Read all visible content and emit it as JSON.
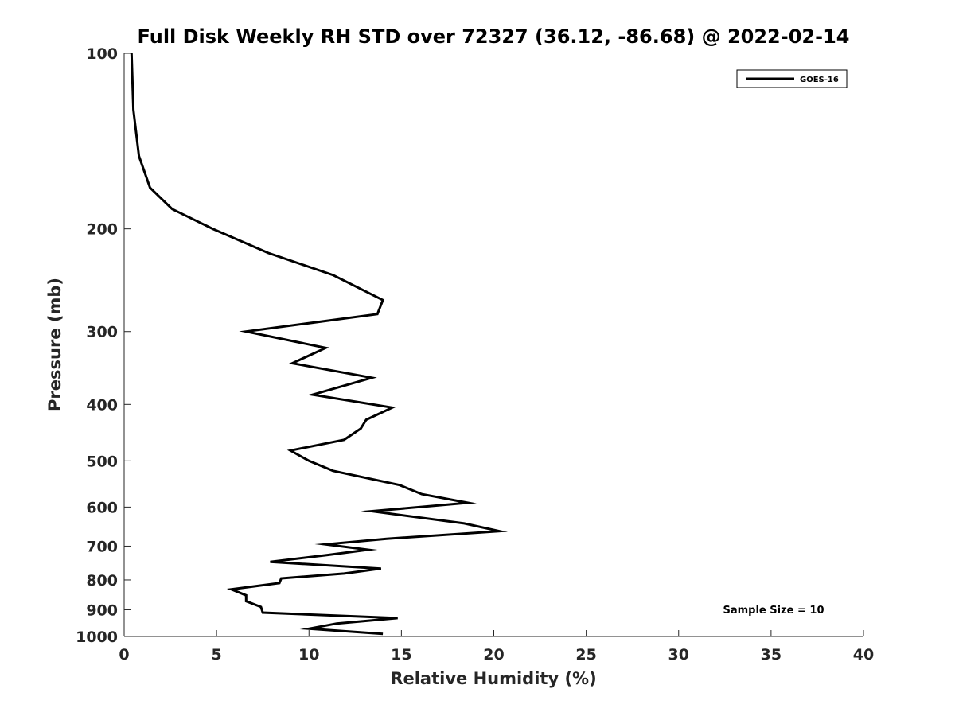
{
  "chart_data": {
    "type": "line",
    "title": "Full Disk Weekly RH STD over 72327 (36.12, -86.68) @ 2022-02-14",
    "xlabel": "Relative Humidity (%)",
    "ylabel": "Pressure (mb)",
    "xlim": [
      0,
      40
    ],
    "ylim": [
      100,
      1000
    ],
    "yscale": "log",
    "y_reversed": true,
    "x_ticks": [
      0,
      5,
      10,
      15,
      20,
      25,
      30,
      35,
      40
    ],
    "y_ticks": [
      100,
      200,
      300,
      400,
      500,
      600,
      700,
      800,
      900,
      1000
    ],
    "legend_position": "top-right",
    "annotation": "Sample Size = 10",
    "series": [
      {
        "name": "GOES-16",
        "color": "#000000",
        "x": [
          0.4,
          0.5,
          0.8,
          1.4,
          2.6,
          4.8,
          7.8,
          11.3,
          14.0,
          13.7,
          6.6,
          10.9,
          9.1,
          13.4,
          10.2,
          14.5,
          13.1,
          12.8,
          11.9,
          9.0,
          10.0,
          11.3,
          14.9,
          16.1,
          18.6,
          13.4,
          18.4,
          20.3,
          14.2,
          10.9,
          13.2,
          11.0,
          7.9,
          13.9,
          11.9,
          8.5,
          8.4,
          5.8,
          6.6,
          6.6,
          7.4,
          7.5,
          14.8,
          11.5,
          10.0,
          14.0
        ],
        "y": [
          100,
          125,
          150,
          170,
          185,
          200,
          220,
          240,
          265,
          280,
          300,
          320,
          340,
          360,
          385,
          405,
          425,
          440,
          460,
          480,
          500,
          520,
          550,
          570,
          590,
          610,
          640,
          660,
          680,
          695,
          710,
          725,
          745,
          765,
          780,
          795,
          810,
          830,
          850,
          870,
          890,
          910,
          930,
          950,
          970,
          990
        ]
      }
    ]
  }
}
